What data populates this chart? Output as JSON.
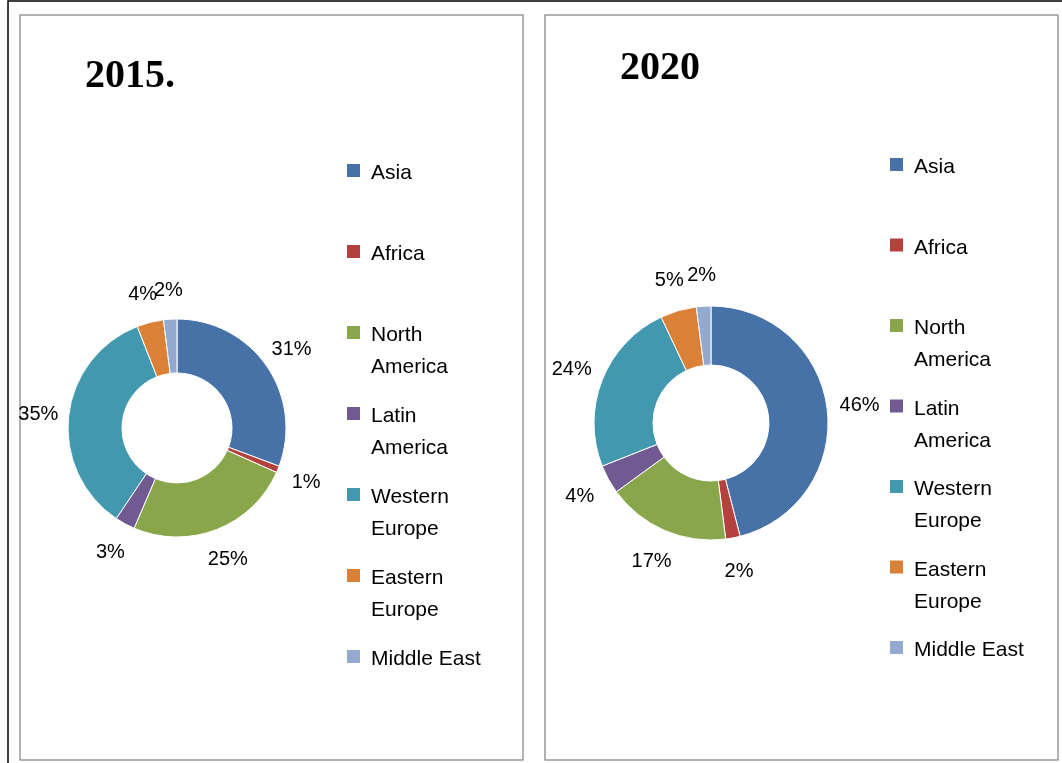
{
  "chart_data": [
    {
      "type": "donut",
      "title": "2015.",
      "categories": [
        "Asia",
        "Africa",
        "North America",
        "Latin America",
        "Western Europe",
        "Eastern Europe",
        "Middle East"
      ],
      "values": [
        31,
        1,
        25,
        3,
        35,
        4,
        2
      ],
      "value_labels": [
        "31%",
        "1%",
        "25%",
        "3%",
        "35%",
        "4%",
        "2%"
      ],
      "colors": [
        "#4672a8",
        "#b4413e",
        "#8aa64a",
        "#715a91",
        "#4198af",
        "#da8137",
        "#94a9d0"
      ],
      "legend": "right"
    },
    {
      "type": "donut",
      "title": "2020",
      "categories": [
        "Asia",
        "Africa",
        "North America",
        "Latin America",
        "Western Europe",
        "Eastern Europe",
        "Middle East"
      ],
      "values": [
        46,
        2,
        17,
        4,
        24,
        5,
        2
      ],
      "value_labels": [
        "46%",
        "2%",
        "17%",
        "4%",
        "24%",
        "5%",
        "2%"
      ],
      "colors": [
        "#4672a8",
        "#b4413e",
        "#8aa64a",
        "#715a91",
        "#4198af",
        "#da8137",
        "#94a9d0"
      ],
      "legend": "right"
    }
  ]
}
